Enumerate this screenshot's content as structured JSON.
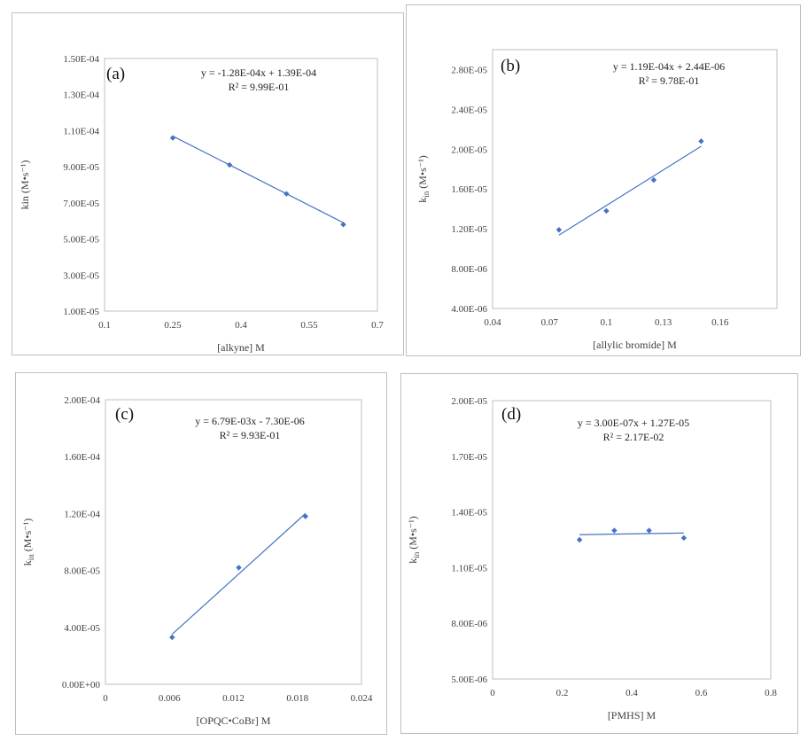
{
  "chart_data": [
    {
      "type": "scatter",
      "panel_label": "(a)",
      "xlabel": "[alkyne] M",
      "ylabel": "kin (M•s⁻¹)",
      "xlim": [
        0.1,
        0.7
      ],
      "ylim": [
        1e-05,
        0.00015
      ],
      "xticks": [
        0.1,
        0.25,
        0.4,
        0.55,
        0.7
      ],
      "xtick_labels": [
        "0.1",
        "0.25",
        "0.4",
        "0.55",
        "0.7"
      ],
      "yticks": [
        1e-05,
        3e-05,
        5e-05,
        7e-05,
        9e-05,
        0.00011,
        0.00013,
        0.00015
      ],
      "ytick_labels": [
        "1.00E-05",
        "3.00E-05",
        "5.00E-05",
        "7.00E-05",
        "9.00E-05",
        "1.10E-04",
        "1.30E-04",
        "1.50E-04"
      ],
      "equation": "y = -1.28E-04x + 1.39E-04",
      "r2": "R² = 9.99E-01",
      "trend": {
        "slope": -0.000128,
        "intercept": 0.000139
      },
      "grid": false,
      "color": "#4472C4",
      "series": [
        {
          "x": [
            0.25,
            0.375,
            0.5,
            0.625
          ],
          "y": [
            0.000106,
            9.1e-05,
            7.5e-05,
            5.8e-05
          ]
        }
      ]
    },
    {
      "type": "scatter",
      "panel_label": "(b)",
      "xlabel": "[allylic bromide] M",
      "ylabel": "kin (M•s⁻¹)",
      "xlim": [
        0.04,
        0.19
      ],
      "ylim": [
        4e-06,
        3e-05
      ],
      "xticks": [
        0.04,
        0.07,
        0.1,
        0.13,
        0.16
      ],
      "xtick_labels": [
        "0.04",
        "0.07",
        "0.1",
        "0.13",
        "0.16"
      ],
      "yticks": [
        4e-06,
        8e-06,
        1.2e-05,
        1.6e-05,
        2e-05,
        2.4e-05,
        2.8e-05
      ],
      "ytick_labels": [
        "4.00E-06",
        "8.00E-06",
        "1.20E-05",
        "1.60E-05",
        "2.00E-05",
        "2.40E-05",
        "2.80E-05"
      ],
      "equation": "y = 1.19E-04x + 2.44E-06",
      "r2": "R² = 9.78E-01",
      "trend": {
        "slope": 0.000119,
        "intercept": 2.44e-06
      },
      "grid": false,
      "color": "#4472C4",
      "series": [
        {
          "x": [
            0.075,
            0.1,
            0.125,
            0.15
          ],
          "y": [
            1.19e-05,
            1.38e-05,
            1.69e-05,
            2.08e-05
          ]
        }
      ]
    },
    {
      "type": "scatter",
      "panel_label": "(c)",
      "xlabel": "[OPQC•CoBr] M",
      "ylabel": "kin (M•s⁻¹)",
      "xlim": [
        0,
        0.024
      ],
      "ylim": [
        0,
        0.0002
      ],
      "xticks": [
        0,
        0.006,
        0.012,
        0.018,
        0.024
      ],
      "xtick_labels": [
        "0",
        "0.006",
        "0.012",
        "0.018",
        "0.024"
      ],
      "yticks": [
        0,
        4e-05,
        8e-05,
        0.00012,
        0.00016,
        0.0002
      ],
      "ytick_labels": [
        "0.00E+00",
        "4.00E-05",
        "8.00E-05",
        "1.20E-04",
        "1.60E-04",
        "2.00E-04"
      ],
      "equation": "y = 6.79E-03x - 7.30E-06",
      "r2": "R² = 9.93E-01",
      "trend": {
        "slope": 0.00679,
        "intercept": -7.3e-06
      },
      "grid": false,
      "color": "#4472C4",
      "series": [
        {
          "x": [
            0.00625,
            0.0125,
            0.01875
          ],
          "y": [
            3.3e-05,
            8.2e-05,
            0.000118
          ]
        }
      ]
    },
    {
      "type": "scatter",
      "panel_label": "(d)",
      "xlabel": "[PMHS] M",
      "ylabel": "kin (M•s⁻¹)",
      "xlim": [
        0,
        0.8
      ],
      "ylim": [
        5e-06,
        2e-05
      ],
      "xticks": [
        0,
        0.2,
        0.4,
        0.6,
        0.8
      ],
      "xtick_labels": [
        "0",
        "0.2",
        "0.4",
        "0.6",
        "0.8"
      ],
      "yticks": [
        5e-06,
        8e-06,
        1.1e-05,
        1.4e-05,
        1.7e-05,
        2e-05
      ],
      "ytick_labels": [
        "5.00E-06",
        "8.00E-06",
        "1.10E-05",
        "1.40E-05",
        "1.70E-05",
        "2.00E-05"
      ],
      "equation": "y = 3.00E-07x + 1.27E-05",
      "r2": "R² = 2.17E-02",
      "trend": {
        "slope": 3e-07,
        "intercept": 1.27e-05
      },
      "grid": false,
      "color": "#4472C4",
      "series": [
        {
          "x": [
            0.25,
            0.35,
            0.45,
            0.55
          ],
          "y": [
            1.25e-05,
            1.3e-05,
            1.3e-05,
            1.26e-05
          ]
        }
      ]
    }
  ]
}
